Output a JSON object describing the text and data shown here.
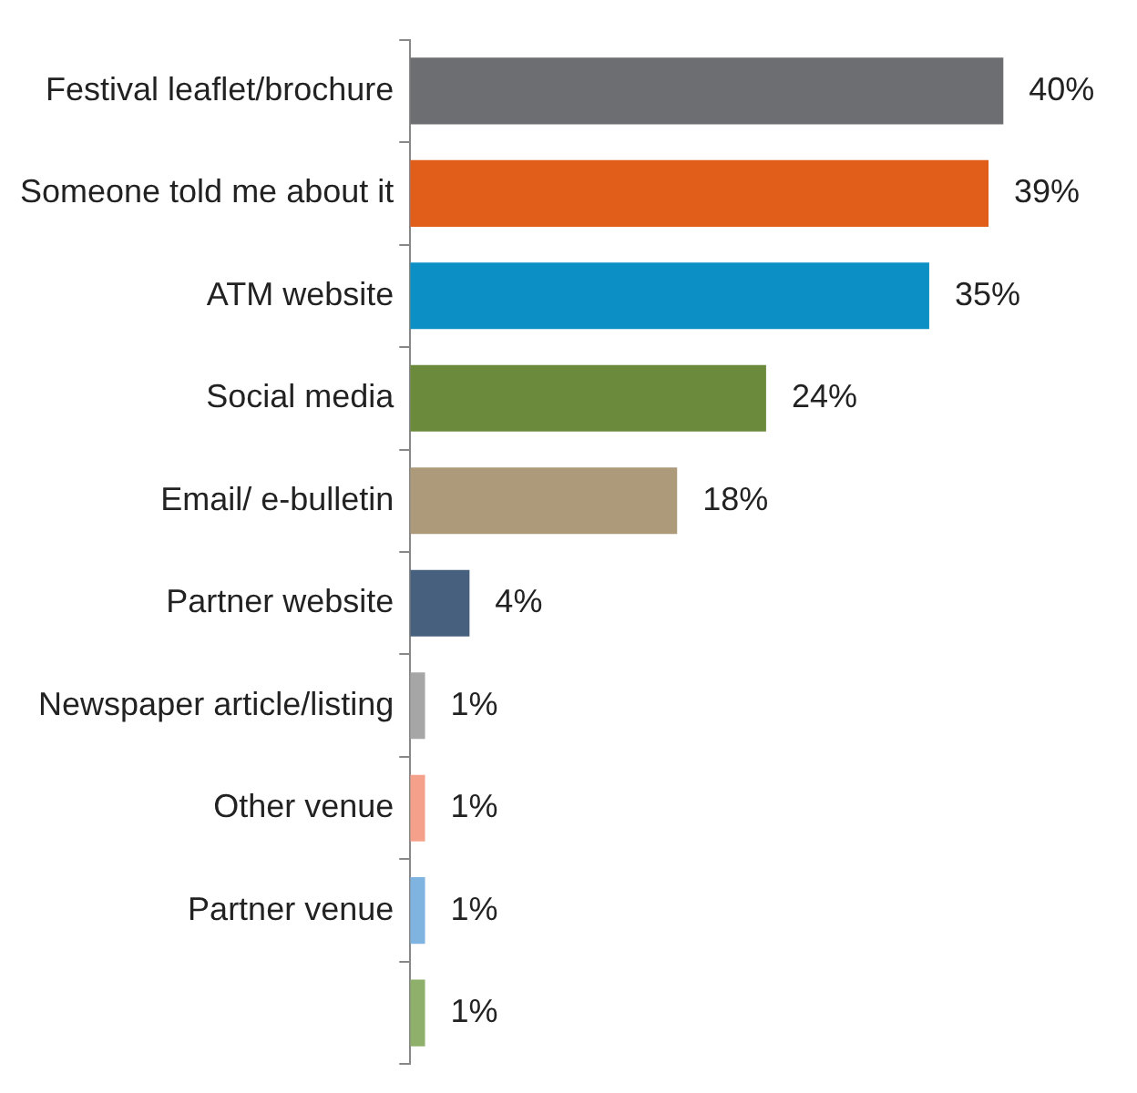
{
  "chart_data": {
    "type": "bar",
    "orientation": "horizontal",
    "categories": [
      "Festival leaflet/brochure",
      "Someone told me about it",
      "ATM website",
      "Social media",
      "Email/ e-bulletin",
      "Partner website",
      "Newspaper article/listing",
      "Other venue",
      "Partner venue",
      null
    ],
    "values": [
      40,
      39,
      35,
      24,
      18,
      4,
      1,
      1,
      1,
      1
    ],
    "value_labels": [
      "40%",
      "39%",
      "35%",
      "24%",
      "18%",
      "4%",
      "1%",
      "1%",
      "1%",
      "1%"
    ],
    "colors": [
      "#6d6e71",
      "#e05e1a",
      "#0b8fc4",
      "#6b8a3c",
      "#ad9a7a",
      "#46607e",
      "#a6a6a6",
      "#f4a08a",
      "#7fb3e0",
      "#8fb06a"
    ],
    "legend": false
  }
}
